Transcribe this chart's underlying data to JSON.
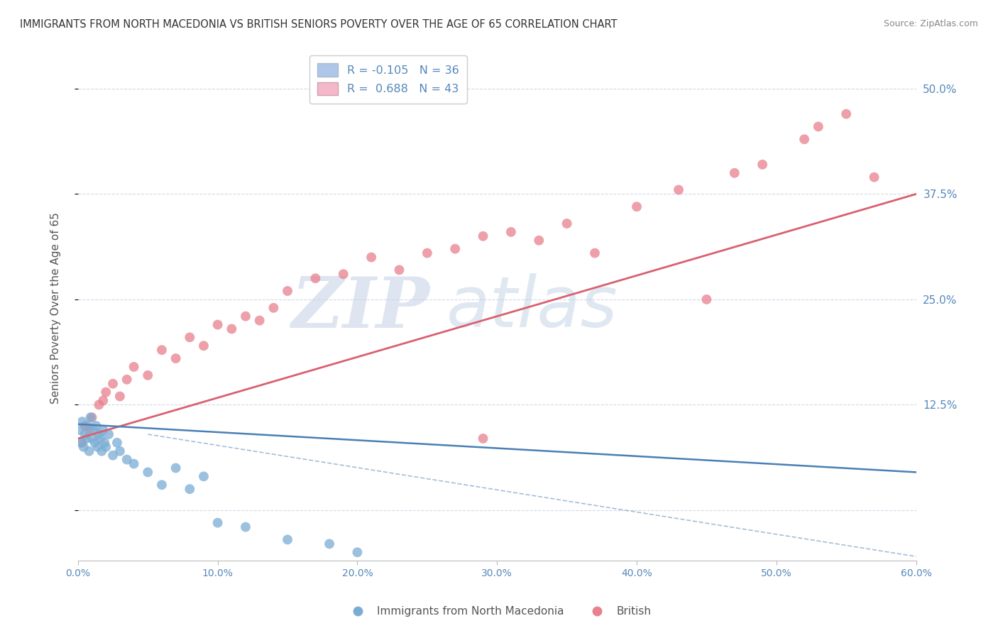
{
  "title": "IMMIGRANTS FROM NORTH MACEDONIA VS BRITISH SENIORS POVERTY OVER THE AGE OF 65 CORRELATION CHART",
  "source": "Source: ZipAtlas.com",
  "ylabel": "Seniors Poverty Over the Age of 65",
  "xlim": [
    0.0,
    60.0
  ],
  "ylim": [
    -6.0,
    54.0
  ],
  "yticks": [
    0.0,
    12.5,
    25.0,
    37.5,
    50.0
  ],
  "ytick_labels": [
    "",
    "12.5%",
    "25.0%",
    "37.5%",
    "50.0%"
  ],
  "xticks": [
    0,
    10,
    20,
    30,
    40,
    50,
    60
  ],
  "xtick_labels": [
    "0.0%",
    "10.0%",
    "20.0%",
    "30.0%",
    "40.0%",
    "50.0%",
    "60.0%"
  ],
  "blue_R": -0.105,
  "blue_N": 36,
  "pink_R": 0.688,
  "pink_N": 43,
  "legend_label_blue": "Immigrants from North Macedonia",
  "legend_label_pink": "British",
  "blue_patch_color": "#aec6e8",
  "pink_patch_color": "#f4b8c8",
  "blue_dot_color": "#7aadd4",
  "pink_dot_color": "#e8808e",
  "blue_line_color": "#4a7fb5",
  "pink_line_color": "#d96070",
  "title_color": "#333333",
  "axis_label_color": "#555555",
  "tick_color": "#5588bb",
  "grid_color": "#d0d8e8",
  "watermark_zip": "ZIP",
  "watermark_atlas": "atlas",
  "blue_x": [
    0.1,
    0.2,
    0.3,
    0.4,
    0.5,
    0.6,
    0.7,
    0.8,
    0.9,
    1.0,
    1.1,
    1.2,
    1.3,
    1.4,
    1.5,
    1.6,
    1.7,
    1.8,
    1.9,
    2.0,
    2.2,
    2.5,
    2.8,
    3.0,
    3.5,
    4.0,
    5.0,
    6.0,
    7.0,
    8.0,
    9.0,
    10.0,
    12.0,
    15.0,
    18.0,
    20.0
  ],
  "blue_y": [
    9.5,
    8.0,
    10.5,
    7.5,
    9.0,
    8.5,
    10.0,
    7.0,
    11.0,
    8.5,
    9.5,
    8.0,
    10.0,
    7.5,
    9.0,
    8.5,
    7.0,
    9.5,
    8.0,
    7.5,
    9.0,
    6.5,
    8.0,
    7.0,
    6.0,
    5.5,
    4.5,
    3.0,
    5.0,
    2.5,
    4.0,
    -1.5,
    -2.0,
    -3.5,
    -4.0,
    -5.0
  ],
  "pink_x": [
    0.3,
    0.5,
    0.8,
    1.0,
    1.5,
    1.8,
    2.0,
    2.5,
    3.0,
    3.5,
    4.0,
    5.0,
    6.0,
    7.0,
    8.0,
    9.0,
    10.0,
    11.0,
    12.0,
    13.0,
    14.0,
    15.0,
    17.0,
    19.0,
    21.0,
    23.0,
    25.0,
    27.0,
    29.0,
    31.0,
    33.0,
    35.0,
    37.0,
    40.0,
    43.0,
    45.0,
    47.0,
    49.0,
    52.0,
    53.0,
    55.0,
    57.0,
    29.0
  ],
  "pink_y": [
    8.0,
    10.0,
    9.5,
    11.0,
    12.5,
    13.0,
    14.0,
    15.0,
    13.5,
    15.5,
    17.0,
    16.0,
    19.0,
    18.0,
    20.5,
    19.5,
    22.0,
    21.5,
    23.0,
    22.5,
    24.0,
    26.0,
    27.5,
    28.0,
    30.0,
    28.5,
    30.5,
    31.0,
    32.5,
    33.0,
    32.0,
    34.0,
    30.5,
    36.0,
    38.0,
    25.0,
    40.0,
    41.0,
    44.0,
    45.5,
    47.0,
    39.5,
    8.5
  ],
  "pink_line_x0": 0.0,
  "pink_line_y0": 8.5,
  "pink_line_x1": 60.0,
  "pink_line_y1": 37.5,
  "blue_line_x0": 0.0,
  "blue_line_y0": 10.2,
  "blue_line_x1": 60.0,
  "blue_line_y1": 4.5,
  "blue_dash_x0": 5.0,
  "blue_dash_y0": 9.0,
  "blue_dash_x1": 60.0,
  "blue_dash_y1": -5.5
}
